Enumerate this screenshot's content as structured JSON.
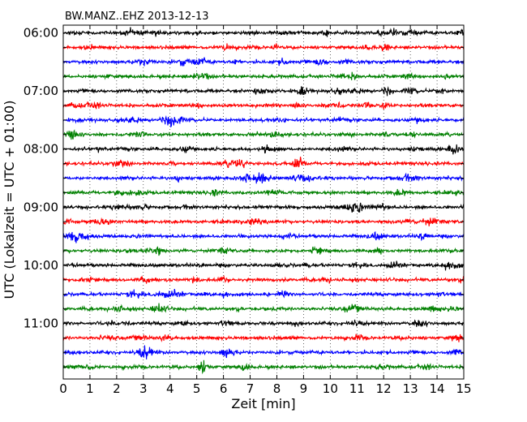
{
  "chart_data": {
    "type": "line",
    "title": "BW.MANZ..EHZ 2013-12-13",
    "xlabel": "Zeit  [min]",
    "ylabel": "UTC (Lokalzeit = UTC + 01:00)",
    "xlim": [
      0,
      15
    ],
    "x_ticks": [
      "0",
      "1",
      "2",
      "3",
      "4",
      "5",
      "6",
      "7",
      "8",
      "9",
      "10",
      "11",
      "12",
      "13",
      "14",
      "15"
    ],
    "y_ticks": [
      "06:00",
      "07:00",
      "08:00",
      "09:00",
      "10:00",
      "11:00"
    ],
    "grid": "vertical dotted",
    "trace_colors": [
      "#000000",
      "#ff0000",
      "#0000ff",
      "#008000"
    ],
    "trace_starts": [
      "06:00",
      "06:15",
      "06:30",
      "06:45",
      "07:00",
      "07:15",
      "07:30",
      "07:45",
      "08:00",
      "08:15",
      "08:30",
      "08:45",
      "09:00",
      "09:15",
      "09:30",
      "09:45",
      "10:00",
      "10:15",
      "10:30",
      "10:45",
      "11:00",
      "11:15",
      "11:30",
      "11:45"
    ]
  }
}
